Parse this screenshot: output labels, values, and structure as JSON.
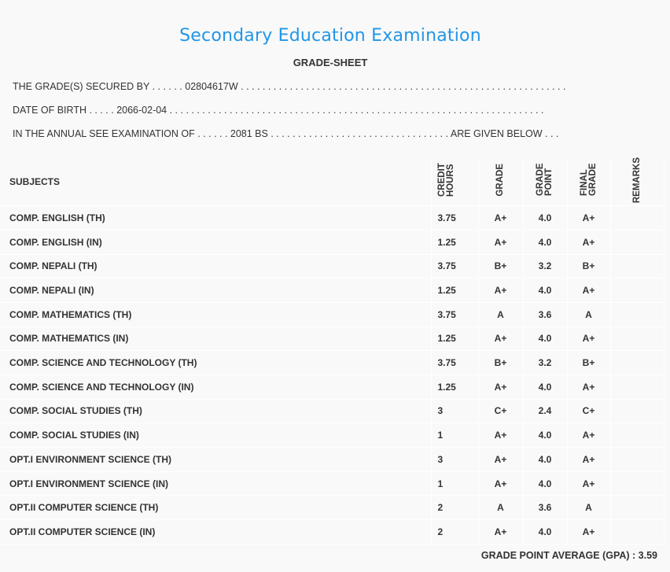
{
  "header": {
    "title": "Secondary Education Examination",
    "subtitle": "GRADE-SHEET"
  },
  "info": {
    "secured_by": "THE GRADE(S) SECURED BY . . . . . . 02804617W . . . . . . . . . . . . . . . . . . . . . . . . . . . . . . . . . . . . . . . . . . . . . . . . . . . . . . . . . . . .",
    "dob": "DATE OF BIRTH . . . . . 2066-02-04 . . . . . . . . . . . . . . . . . . . . . . . . . . . . . . . . . . . . . . . . . . . . . . . . . . . . . . . . . . . . . . . . . . . . .",
    "exam": "IN THE ANNUAL SEE EXAMINATION OF . . . . . . 2081 BS . . . . . . . . . . . . . . . . . . . . . . . . . . . . . . . . . ARE GIVEN BELOW . . ."
  },
  "table": {
    "headers": {
      "subjects": "SUBJECTS",
      "credit_hours": "CREDIT HOURS",
      "grade": "GRADE",
      "grade_point": "GRADE POINT",
      "final_grade": "FINAL GRADE",
      "remarks": "REMARKS"
    },
    "rows": [
      {
        "subject": "COMP. ENGLISH (TH)",
        "credit": "3.75",
        "grade": "A+",
        "gp": "4.0",
        "final": "A+"
      },
      {
        "subject": "COMP. ENGLISH (IN)",
        "credit": "1.25",
        "grade": "A+",
        "gp": "4.0",
        "final": "A+"
      },
      {
        "subject": "COMP. NEPALI (TH)",
        "credit": "3.75",
        "grade": "B+",
        "gp": "3.2",
        "final": "B+"
      },
      {
        "subject": "COMP. NEPALI (IN)",
        "credit": "1.25",
        "grade": "A+",
        "gp": "4.0",
        "final": "A+"
      },
      {
        "subject": "COMP. MATHEMATICS (TH)",
        "credit": "3.75",
        "grade": "A",
        "gp": "3.6",
        "final": "A"
      },
      {
        "subject": "COMP. MATHEMATICS (IN)",
        "credit": "1.25",
        "grade": "A+",
        "gp": "4.0",
        "final": "A+"
      },
      {
        "subject": "COMP. SCIENCE AND TECHNOLOGY (TH)",
        "credit": "3.75",
        "grade": "B+",
        "gp": "3.2",
        "final": "B+"
      },
      {
        "subject": "COMP. SCIENCE AND TECHNOLOGY (IN)",
        "credit": "1.25",
        "grade": "A+",
        "gp": "4.0",
        "final": "A+"
      },
      {
        "subject": "COMP. SOCIAL STUDIES (TH)",
        "credit": "3",
        "grade": "C+",
        "gp": "2.4",
        "final": "C+"
      },
      {
        "subject": "COMP. SOCIAL STUDIES (IN)",
        "credit": "1",
        "grade": "A+",
        "gp": "4.0",
        "final": "A+"
      },
      {
        "subject": "OPT.I ENVIRONMENT SCIENCE (TH)",
        "credit": "3",
        "grade": "A+",
        "gp": "4.0",
        "final": "A+"
      },
      {
        "subject": "OPT.I ENVIRONMENT SCIENCE (IN)",
        "credit": "1",
        "grade": "A+",
        "gp": "4.0",
        "final": "A+"
      },
      {
        "subject": "OPT.II COMPUTER SCIENCE (TH)",
        "credit": "2",
        "grade": "A",
        "gp": "3.6",
        "final": "A"
      },
      {
        "subject": "OPT.II COMPUTER SCIENCE (IN)",
        "credit": "2",
        "grade": "A+",
        "gp": "4.0",
        "final": "A+"
      }
    ]
  },
  "gpa": "GRADE POINT AVERAGE (GPA) : 3.59",
  "colors": {
    "title": "#2196e8",
    "text": "#333333",
    "background": "#f9f9f9"
  }
}
